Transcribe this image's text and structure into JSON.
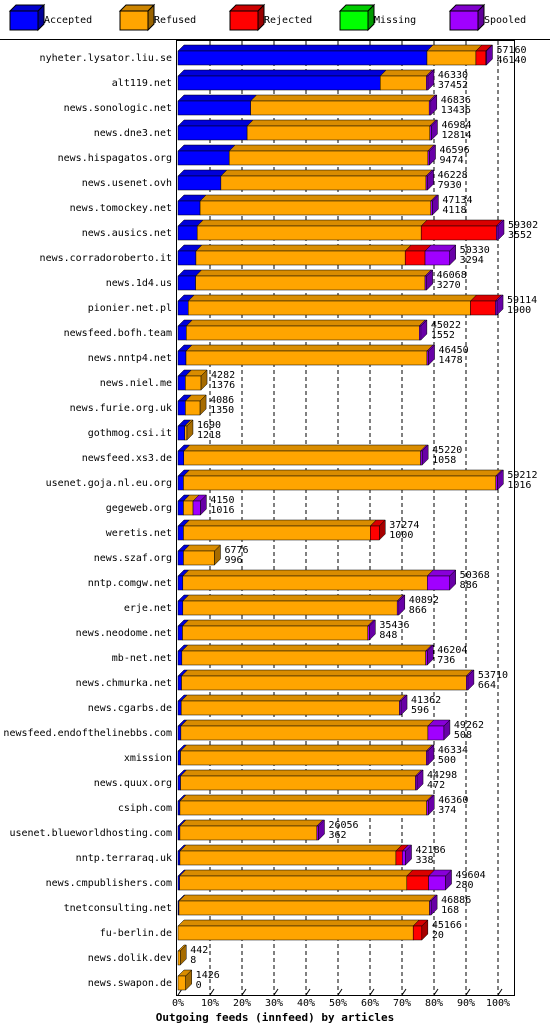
{
  "chart_data": {
    "type": "stacked-bar-horizontal",
    "title": "Outgoing feeds (innfeed) by articles",
    "categories": [
      "nyheter.lysator.liu.se",
      "alt119.net",
      "news.sonologic.net",
      "news.dne3.net",
      "news.hispagatos.org",
      "news.usenet.ovh",
      "news.tomockey.net",
      "news.ausics.net",
      "news.corradoroberto.it",
      "news.1d4.us",
      "pionier.net.pl",
      "newsfeed.bofh.team",
      "news.nntp4.net",
      "news.niel.me",
      "news.furie.org.uk",
      "gothmog.csi.it",
      "newsfeed.xs3.de",
      "usenet.goja.nl.eu.org",
      "gegeweb.org",
      "weretis.net",
      "news.szaf.org",
      "nntp.comgw.net",
      "erje.net",
      "news.neodome.net",
      "mb-net.net",
      "news.chmurka.net",
      "news.cgarbs.de",
      "newsfeed.endofthelinebbs.com",
      "xmission",
      "news.quux.org",
      "csiph.com",
      "usenet.blueworldhosting.com",
      "nntp.terraraq.uk",
      "news.cmpublishers.com",
      "tnetconsulting.net",
      "fu-berlin.de",
      "news.dolik.dev",
      "news.swapon.de"
    ],
    "series": [
      {
        "name": "Accepted",
        "color": "#0000ff",
        "values": [
          77.8,
          63.2,
          22.7,
          21.6,
          16.0,
          13.4,
          6.9,
          6.0,
          5.6,
          5.5,
          3.2,
          2.6,
          2.5,
          2.3,
          2.3,
          2.1,
          1.8,
          1.7,
          1.7,
          1.7,
          1.7,
          1.5,
          1.5,
          1.4,
          1.2,
          1.1,
          1.0,
          0.9,
          0.8,
          0.8,
          0.6,
          0.6,
          0.6,
          0.5,
          0.3,
          0.0,
          0.0,
          0
        ]
      },
      {
        "name": "Refused",
        "color": "#ffa500",
        "values": [
          15.3,
          14.4,
          55.8,
          57.1,
          62.1,
          64.1,
          72.1,
          70.0,
          65.4,
          71.7,
          88.2,
          72.8,
          75.3,
          4.9,
          4.6,
          0.7,
          74.0,
          97.6,
          3.0,
          58.4,
          9.7,
          76.4,
          67.0,
          57.9,
          76.2,
          89.0,
          68.2,
          77.2,
          76.8,
          73.4,
          77.1,
          42.8,
          67.5,
          71.0,
          78.3,
          73.5,
          0.7,
          2.4
        ]
      },
      {
        "name": "Rejected",
        "color": "#ff0000",
        "values": [
          3.1,
          0,
          0,
          0,
          0,
          0,
          0,
          23.5,
          6.2,
          0,
          7.8,
          0,
          0,
          0,
          0,
          0,
          0,
          0,
          0,
          2.8,
          0,
          0,
          0,
          0,
          0,
          0,
          0,
          0,
          0,
          0,
          0,
          0,
          2.0,
          6.8,
          0,
          2.7,
          0,
          0
        ]
      },
      {
        "name": "Missing",
        "color": "#00ff00",
        "values": [
          0,
          0,
          0,
          0,
          0,
          0,
          0,
          0,
          0,
          0,
          0,
          0,
          0,
          0,
          0,
          0,
          0,
          0,
          0,
          0,
          0,
          0,
          0,
          0,
          0,
          0,
          0,
          0,
          0,
          0,
          0,
          0,
          0,
          0,
          0,
          0,
          0,
          0
        ]
      },
      {
        "name": "Spooled",
        "color": "#a000ff",
        "values": [
          0.2,
          0.5,
          0.5,
          0.5,
          0.5,
          0.5,
          0.5,
          0.5,
          7.7,
          0.5,
          0.5,
          0.5,
          0.5,
          0,
          0,
          0,
          0.5,
          0.5,
          2.3,
          0,
          0,
          7.0,
          0.5,
          0.5,
          0.5,
          0.5,
          0.5,
          5.0,
          0.5,
          0.5,
          0.5,
          0.5,
          1.0,
          5.3,
          0.5,
          0,
          0,
          0
        ]
      }
    ],
    "offered": [
      57160,
      46330,
      46836,
      46984,
      46596,
      46228,
      47134,
      59302,
      50330,
      46068,
      59114,
      45022,
      46450,
      4282,
      4086,
      1690,
      45220,
      59212,
      4150,
      37274,
      6776,
      50368,
      40892,
      35436,
      46204,
      53710,
      41362,
      49262,
      46334,
      44298,
      46360,
      26056,
      42186,
      49604,
      46886,
      45166,
      442,
      1426
    ],
    "accepted": [
      46140,
      37452,
      13436,
      12814,
      9474,
      7930,
      4118,
      3552,
      3294,
      3270,
      1900,
      1552,
      1478,
      1376,
      1350,
      1218,
      1058,
      1016,
      1016,
      1000,
      996,
      886,
      866,
      848,
      736,
      664,
      596,
      508,
      500,
      472,
      374,
      362,
      338,
      280,
      168,
      20,
      8,
      0
    ],
    "xlim": [
      0,
      100
    ],
    "xticks": [
      {
        "value": 0,
        "label": "0%"
      },
      {
        "value": 10,
        "label": "10%"
      },
      {
        "value": 20,
        "label": "20%"
      },
      {
        "value": 30,
        "label": "30%"
      },
      {
        "value": 40,
        "label": "40%"
      },
      {
        "value": 50,
        "label": "50%"
      },
      {
        "value": 60,
        "label": "60%"
      },
      {
        "value": 70,
        "label": "70%"
      },
      {
        "value": 80,
        "label": "80%"
      },
      {
        "value": 90,
        "label": "90%"
      },
      {
        "value": 100,
        "label": "100%"
      }
    ],
    "grid": true
  }
}
